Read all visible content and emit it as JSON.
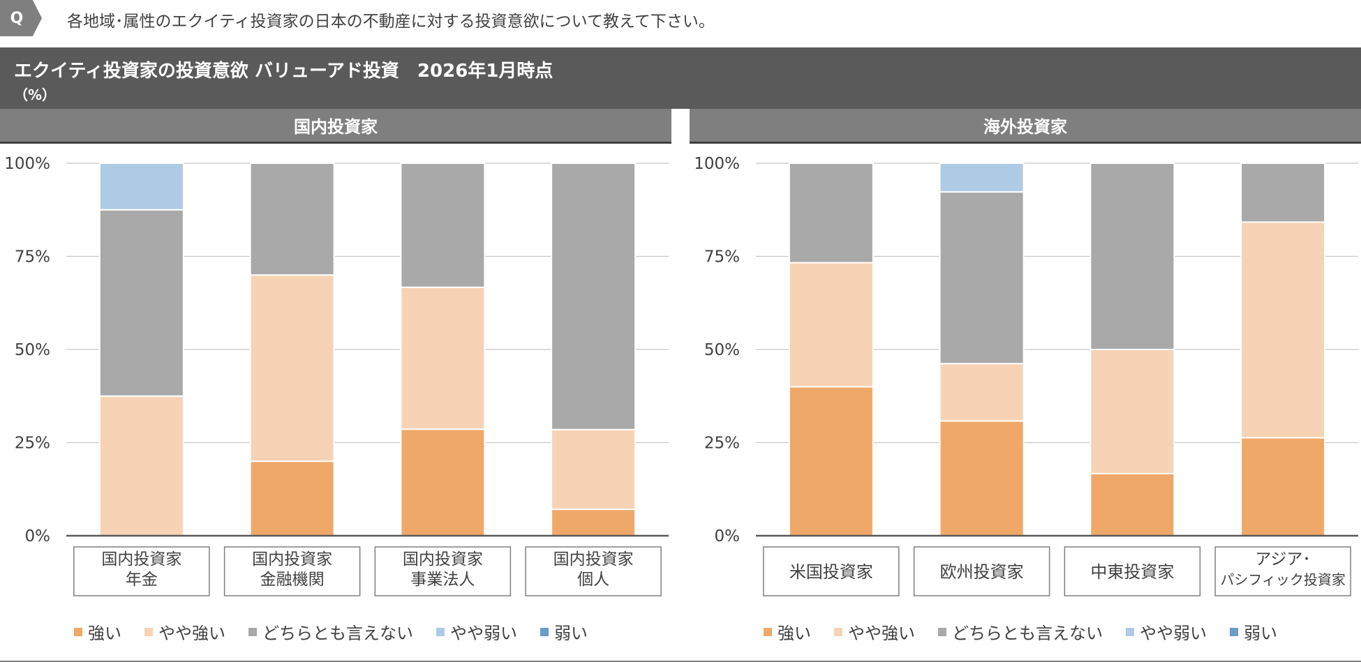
{
  "question": {
    "badge": "Q",
    "text": "各地域･属性のエクイティ投資家の日本の不動産に対する投資意欲について教えて下さい。"
  },
  "title": {
    "main": "エクイティ投資家の投資意欲 バリューアド投資　2026年1月時点",
    "unit": "（%）"
  },
  "colors": {
    "strong": "#f0a868",
    "somewhat_strong": "#f8d2b4",
    "neutral": "#a9a9a9",
    "somewhat_weak": "#aecbe5",
    "weak": "#6a9cc8",
    "header_dark": "#5a5a5a",
    "header_mid": "#7f7f7f"
  },
  "chart_data": [
    {
      "type": "bar",
      "stacked": true,
      "title": "国内投資家",
      "ylim": [
        0,
        100
      ],
      "yticks": [
        "0%",
        "25%",
        "50%",
        "75%",
        "100%"
      ],
      "categories": [
        [
          "国内投資家",
          "年金"
        ],
        [
          "国内投資家",
          "金融機関"
        ],
        [
          "国内投資家",
          "事業法人"
        ],
        [
          "国内投資家",
          "個人"
        ]
      ],
      "series": [
        {
          "name": "強い",
          "values": [
            0,
            20,
            28.6,
            7.1
          ]
        },
        {
          "name": "やや強い",
          "values": [
            37.5,
            50,
            38.1,
            21.4
          ]
        },
        {
          "name": "どちらとも言えない",
          "values": [
            50,
            30,
            33.3,
            71.5
          ]
        },
        {
          "name": "やや弱い",
          "values": [
            12.5,
            0,
            0,
            0
          ]
        },
        {
          "name": "弱い",
          "values": [
            0,
            0,
            0,
            0
          ]
        }
      ]
    },
    {
      "type": "bar",
      "stacked": true,
      "title": "海外投資家",
      "ylim": [
        0,
        100
      ],
      "yticks": [
        "0%",
        "25%",
        "50%",
        "75%",
        "100%"
      ],
      "categories": [
        [
          "米国投資家"
        ],
        [
          "欧州投資家"
        ],
        [
          "中東投資家"
        ],
        [
          "アジア･",
          "パシフィック投資家"
        ]
      ],
      "series": [
        {
          "name": "強い",
          "values": [
            40,
            30.8,
            16.7,
            26.3
          ]
        },
        {
          "name": "やや強い",
          "values": [
            33.3,
            15.4,
            33.3,
            57.9
          ]
        },
        {
          "name": "どちらとも言えない",
          "values": [
            26.7,
            46.1,
            50,
            15.8
          ]
        },
        {
          "name": "やや弱い",
          "values": [
            0,
            7.7,
            0,
            0
          ]
        },
        {
          "name": "弱い",
          "values": [
            0,
            0,
            0,
            0
          ]
        }
      ]
    }
  ]
}
